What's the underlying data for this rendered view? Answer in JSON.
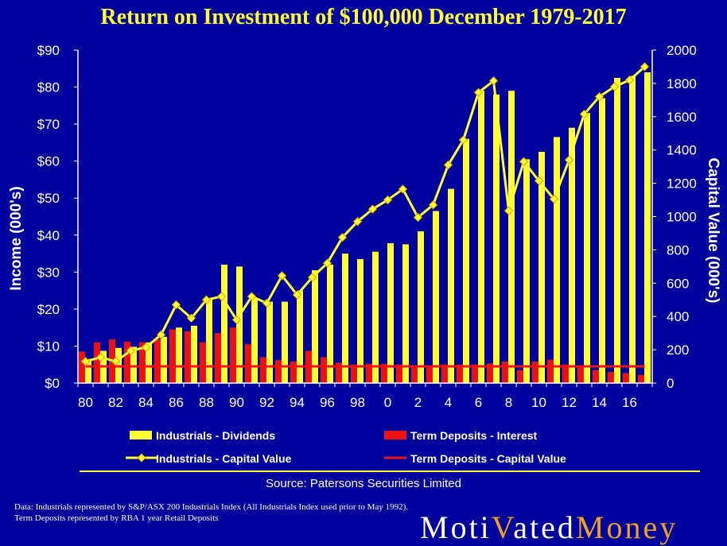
{
  "title": "Return on Investment of  $100,000 December 1979-2017",
  "source": "Source: Patersons Securities Limited",
  "footnote": "Data: Industrials represented by S&P/ASX 200 Industrials Index (All Industrials Index used prior to May 1992).  Term Deposits represented by RBA 1 year Retail Deposits",
  "logo": {
    "part1": "Moti",
    "part2": "ated",
    "part3": "Money"
  },
  "colors": {
    "background": "#00009c",
    "yellow": "#ffff33",
    "red": "#ee1111",
    "gold": "#f0a020"
  },
  "chart_data": {
    "type": "bar",
    "x": [
      80,
      81,
      82,
      83,
      84,
      85,
      86,
      87,
      88,
      89,
      90,
      91,
      92,
      93,
      94,
      95,
      96,
      97,
      98,
      99,
      0,
      1,
      2,
      3,
      4,
      5,
      6,
      7,
      8,
      9,
      10,
      11,
      12,
      13,
      14,
      15,
      16,
      17
    ],
    "tick_labels": [
      "80",
      "82",
      "84",
      "86",
      "88",
      "90",
      "92",
      "94",
      "96",
      "98",
      "0",
      "2",
      "4",
      "6",
      "8",
      "10",
      "12",
      "14",
      "16"
    ],
    "y_left": {
      "label": "Income (000's)",
      "ticks": [
        "$0",
        "$10",
        "$20",
        "$30",
        "$40",
        "$50",
        "$60",
        "$70",
        "$80",
        "$90"
      ],
      "ylim": [
        0,
        90
      ]
    },
    "y_right": {
      "label": "Capital Value (000's)",
      "ticks": [
        "0",
        "200",
        "400",
        "600",
        "800",
        "1000",
        "1200",
        "1400",
        "1600",
        "1800",
        "2000"
      ],
      "ylim": [
        0,
        2000
      ]
    },
    "series": [
      {
        "name": "Industrials - Dividends",
        "type": "bar",
        "axis": "left",
        "values": [
          6.5,
          8.7,
          9.5,
          9.8,
          11,
          12.5,
          15,
          15.5,
          23,
          32,
          31.5,
          23,
          22,
          22,
          25,
          30.5,
          32,
          35,
          33.5,
          35.5,
          37.8,
          37.5,
          41,
          46.5,
          52.5,
          66,
          79,
          78,
          79,
          60.5,
          62.5,
          66.5,
          69,
          73,
          77,
          82.5,
          83,
          84
        ]
      },
      {
        "name": "Term Deposits - Interest",
        "type": "bar",
        "axis": "left",
        "values": [
          8.5,
          11,
          11.8,
          11.2,
          11,
          11.8,
          14.5,
          14,
          11,
          13.5,
          15,
          10.5,
          7,
          6.2,
          5.8,
          8.7,
          7,
          5.5,
          5,
          5.2,
          5.2,
          5,
          4.5,
          4.8,
          5,
          5,
          5,
          5.3,
          5.8,
          3.5,
          5.8,
          6.3,
          5,
          4.3,
          3.5,
          3,
          2.7,
          2.2
        ]
      },
      {
        "name": "Industrials - Capital Value",
        "type": "line",
        "axis": "right",
        "marker": "diamond",
        "values": [
          130,
          155,
          130,
          195,
          215,
          290,
          470,
          390,
          500,
          520,
          380,
          520,
          480,
          645,
          530,
          635,
          720,
          875,
          970,
          1045,
          1100,
          1165,
          995,
          1070,
          1310,
          1460,
          1745,
          1815,
          1035,
          1330,
          1215,
          1105,
          1340,
          1615,
          1720,
          1780,
          1820,
          1900
        ]
      },
      {
        "name": "Term Deposits - Capital Value",
        "type": "line",
        "axis": "right",
        "values": [
          100,
          100,
          100,
          100,
          100,
          100,
          100,
          100,
          100,
          100,
          100,
          100,
          100,
          100,
          100,
          100,
          100,
          100,
          100,
          100,
          100,
          100,
          100,
          100,
          100,
          100,
          100,
          100,
          100,
          100,
          100,
          100,
          100,
          100,
          100,
          100,
          100,
          100
        ]
      }
    ],
    "legend_position": "bottom"
  }
}
